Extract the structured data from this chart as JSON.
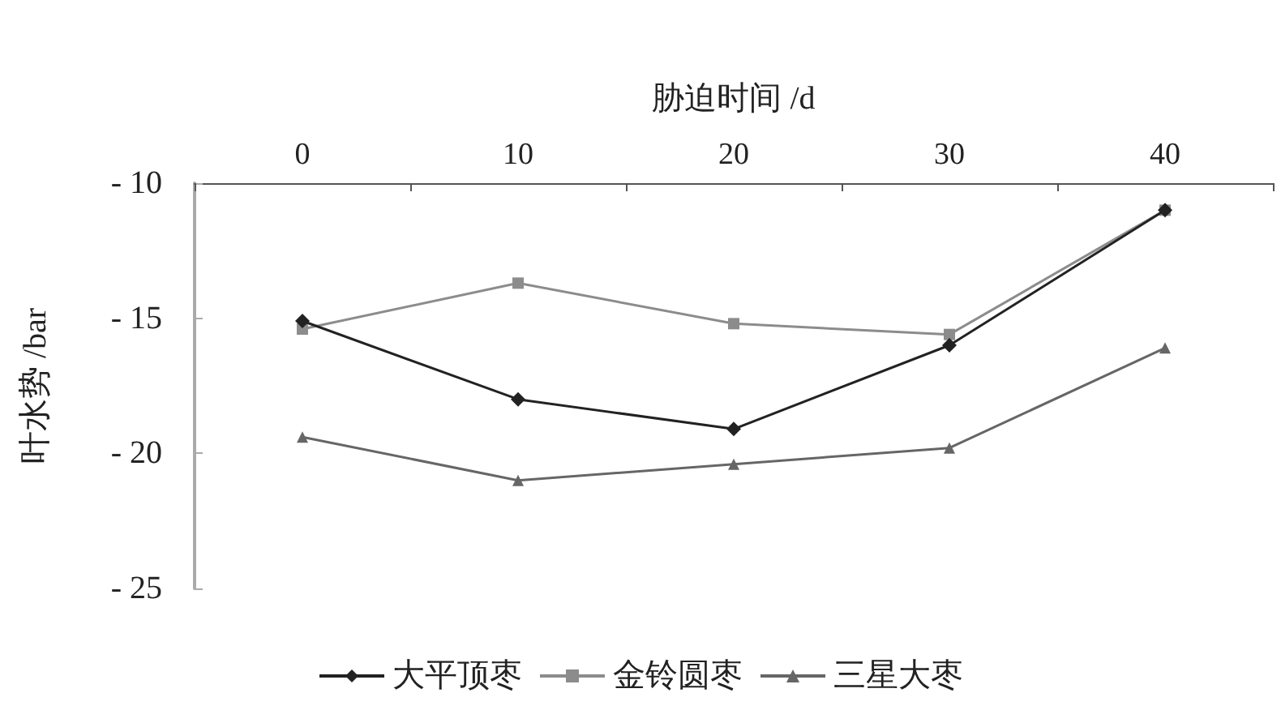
{
  "chart_data": {
    "type": "line",
    "xlabel": "胁迫时间 /d",
    "ylabel": "叶水势 /bar",
    "categories": [
      "0",
      "10",
      "20",
      "30",
      "40"
    ],
    "series": [
      {
        "name": "大平顶枣",
        "color": "#222222",
        "marker": "diamond",
        "values": [
          -15.1,
          -18.0,
          -19.1,
          -16.0,
          -11.0
        ]
      },
      {
        "name": "金铃圆枣",
        "color": "#8c8c8c",
        "marker": "square",
        "values": [
          -15.4,
          -13.7,
          -15.2,
          -15.6,
          -11.0
        ]
      },
      {
        "name": "三星大枣",
        "color": "#666666",
        "marker": "triangle",
        "values": [
          -19.4,
          -21.0,
          -20.4,
          -19.8,
          -16.1
        ]
      }
    ],
    "ylim": [
      -25,
      -10
    ],
    "yticks": [
      {
        "value": -25,
        "label": "- 25"
      },
      {
        "value": -20,
        "label": "- 20"
      },
      {
        "value": -15,
        "label": "- 15"
      },
      {
        "value": -10,
        "label": "- 10"
      }
    ],
    "grid": false,
    "legend": "bottom"
  }
}
